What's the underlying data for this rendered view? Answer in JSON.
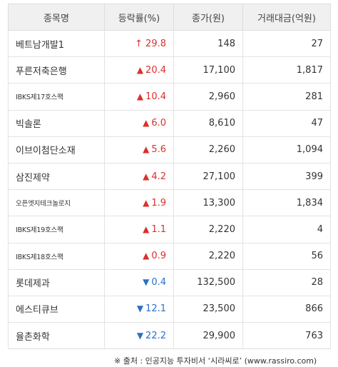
{
  "table": {
    "headers": {
      "name": "종목명",
      "rate": "등락률(%)",
      "price": "종가(원)",
      "volume": "거래대금(억원)"
    },
    "rows": [
      {
        "name": "베트남개발1",
        "direction": "limit-up",
        "arrow": "↑",
        "rate": "29.8",
        "price": "148",
        "volume": "27"
      },
      {
        "name": "푸른저축은행",
        "direction": "up",
        "arrow": "▲",
        "rate": "20.4",
        "price": "17,100",
        "volume": "1,817"
      },
      {
        "name": "IBKS제17호스팩",
        "direction": "up",
        "arrow": "▲",
        "rate": "10.4",
        "price": "2,960",
        "volume": "281"
      },
      {
        "name": "빅솔론",
        "direction": "up",
        "arrow": "▲",
        "rate": "6.0",
        "price": "8,610",
        "volume": "47"
      },
      {
        "name": "이브이첨단소재",
        "direction": "up",
        "arrow": "▲",
        "rate": "5.6",
        "price": "2,260",
        "volume": "1,094"
      },
      {
        "name": "삼진제약",
        "direction": "up",
        "arrow": "▲",
        "rate": "4.2",
        "price": "27,100",
        "volume": "399"
      },
      {
        "name": "오픈엣지테크놀로지",
        "direction": "up",
        "arrow": "▲",
        "rate": "1.9",
        "price": "13,300",
        "volume": "1,834"
      },
      {
        "name": "IBKS제19호스팩",
        "direction": "up",
        "arrow": "▲",
        "rate": "1.1",
        "price": "2,220",
        "volume": "4"
      },
      {
        "name": "IBKS제18호스팩",
        "direction": "up",
        "arrow": "▲",
        "rate": "0.9",
        "price": "2,220",
        "volume": "56"
      },
      {
        "name": "롯데제과",
        "direction": "down",
        "arrow": "▼",
        "rate": "0.4",
        "price": "132,500",
        "volume": "28"
      },
      {
        "name": "에스티큐브",
        "direction": "down",
        "arrow": "▼",
        "rate": "12.1",
        "price": "23,500",
        "volume": "866"
      },
      {
        "name": "율촌화학",
        "direction": "down",
        "arrow": "▼",
        "rate": "22.2",
        "price": "29,900",
        "volume": "763"
      }
    ]
  },
  "footer": {
    "source": "※ 출처 : 인공지능 투자비서 ‘시라씨로’ (www.rassiro.com)"
  },
  "colors": {
    "up": "#d9312b",
    "down": "#2b6fc9",
    "header_bg": "#f0f0f0",
    "border": "#e3e3e3"
  }
}
